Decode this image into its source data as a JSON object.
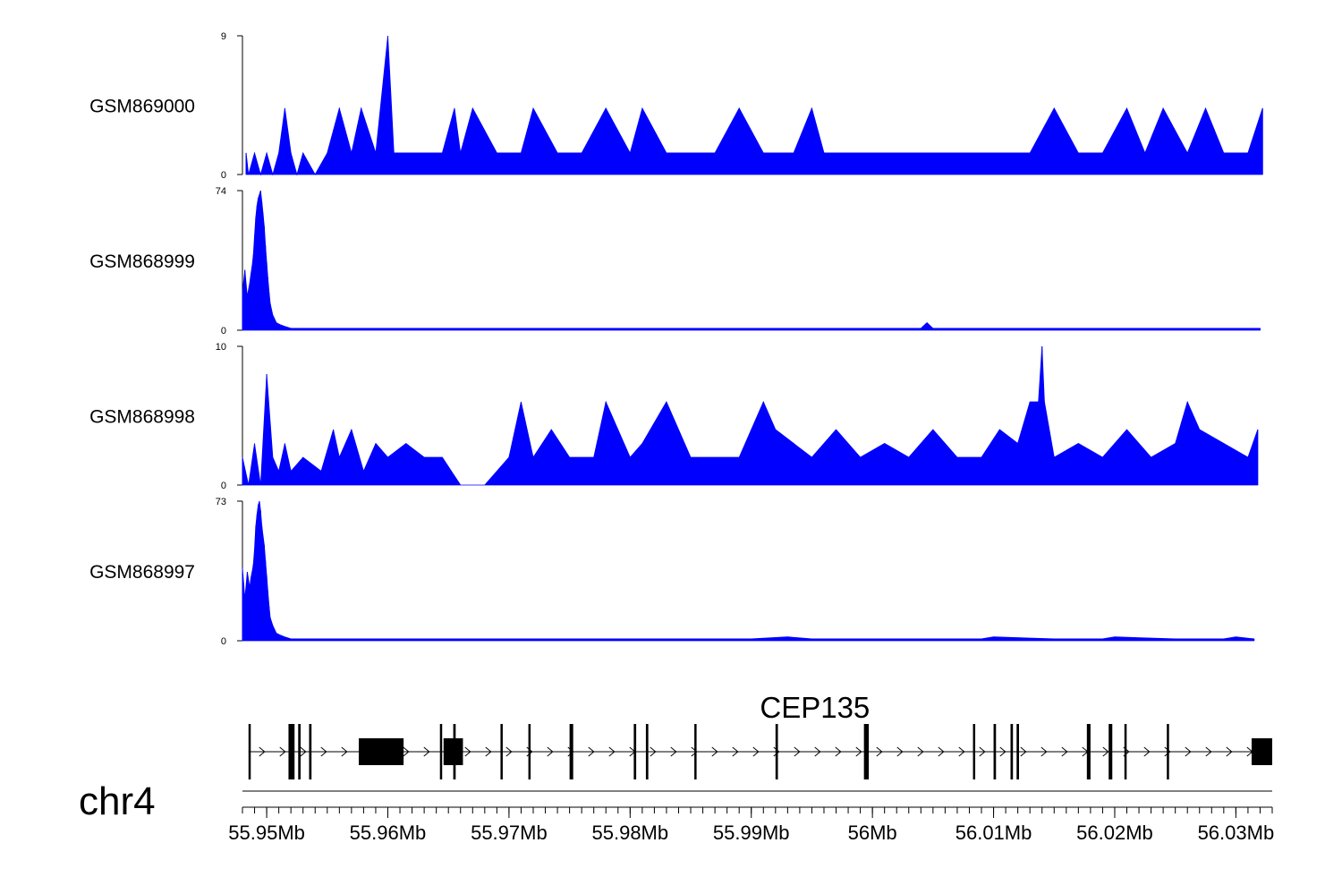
{
  "chart_data": {
    "type": "area",
    "chromosome": "chr4",
    "xlim": [
      55.948,
      56.033
    ],
    "x_unit": "Mb",
    "x_ticks": [
      {
        "value": 55.95,
        "label": "55.95Mb"
      },
      {
        "value": 55.96,
        "label": "55.96Mb"
      },
      {
        "value": 55.97,
        "label": "55.97Mb"
      },
      {
        "value": 55.98,
        "label": "55.98Mb"
      },
      {
        "value": 55.99,
        "label": "55.99Mb"
      },
      {
        "value": 56.0,
        "label": "56Mb"
      },
      {
        "value": 56.01,
        "label": "56.01Mb"
      },
      {
        "value": 56.02,
        "label": "56.02Mb"
      },
      {
        "value": 56.03,
        "label": "56.03Mb"
      }
    ],
    "series": [
      {
        "name": "GSM869000",
        "ylim": [
          0,
          9
        ],
        "y_tick_labels": [
          "0",
          "9"
        ],
        "color": "#0000ff",
        "x": [
          55.9483,
          55.9485,
          55.949,
          55.9495,
          55.95,
          55.9505,
          55.951,
          55.9515,
          55.952,
          55.9525,
          55.953,
          55.954,
          55.955,
          55.956,
          55.957,
          55.9578,
          55.959,
          55.96,
          55.9605,
          55.9613,
          55.963,
          55.9645,
          55.9655,
          55.966,
          55.967,
          55.969,
          55.971,
          55.972,
          55.974,
          55.975,
          55.976,
          55.978,
          55.98,
          55.981,
          55.983,
          55.985,
          55.987,
          55.989,
          55.991,
          55.992,
          55.9935,
          55.995,
          55.996,
          55.998,
          56.001,
          56.003,
          56.005,
          56.007,
          56.01,
          56.0115,
          56.013,
          56.015,
          56.017,
          56.019,
          56.021,
          56.0225,
          56.024,
          56.026,
          56.0275,
          56.029,
          56.031,
          56.0322
        ],
        "y": [
          1.4,
          0,
          1.4,
          0,
          1.4,
          0,
          1.4,
          4.3,
          1.4,
          0,
          1.4,
          0,
          1.4,
          4.3,
          1.4,
          4.3,
          1.4,
          9.0,
          1.4,
          1.4,
          1.4,
          1.4,
          4.3,
          1.4,
          4.3,
          1.4,
          1.4,
          4.3,
          1.4,
          1.4,
          1.4,
          4.3,
          1.4,
          4.3,
          1.4,
          1.4,
          1.4,
          4.3,
          1.4,
          1.4,
          1.4,
          4.3,
          1.4,
          1.4,
          1.4,
          1.4,
          1.4,
          1.4,
          1.4,
          1.4,
          1.4,
          4.3,
          1.4,
          1.4,
          4.3,
          1.4,
          4.3,
          1.4,
          4.3,
          1.4,
          1.4,
          4.3
        ]
      },
      {
        "name": "GSM868999",
        "ylim": [
          0,
          74
        ],
        "y_tick_labels": [
          "0",
          "74"
        ],
        "color": "#0000ff",
        "x": [
          55.948,
          55.9481,
          55.9482,
          55.9484,
          55.9486,
          55.9487,
          55.9488,
          55.9489,
          55.949,
          55.9491,
          55.9492,
          55.9493,
          55.9494,
          55.9495,
          55.9496,
          55.9497,
          55.9498,
          55.9499,
          55.95,
          55.9501,
          55.9502,
          55.9503,
          55.9505,
          55.9508,
          55.9511,
          55.9515,
          55.952,
          55.953,
          55.955,
          55.96,
          55.965,
          55.97,
          55.975,
          55.98,
          55.985,
          55.99,
          55.995,
          56.0,
          56.003,
          56.004,
          56.0045,
          56.005,
          56.01,
          56.014,
          56.02,
          56.025,
          56.03,
          56.032
        ],
        "y": [
          20,
          26,
          32,
          18,
          25,
          30,
          34,
          40,
          50,
          60,
          66,
          70,
          72,
          74,
          68,
          62,
          55,
          45,
          36,
          28,
          20,
          14,
          8,
          4,
          3,
          2,
          1,
          1,
          1,
          1,
          1,
          1,
          1,
          1,
          1,
          1,
          1,
          1,
          1,
          1,
          4,
          1,
          1,
          1,
          1,
          1,
          1,
          1
        ]
      },
      {
        "name": "GSM868998",
        "ylim": [
          0,
          10
        ],
        "y_tick_labels": [
          "0",
          "10"
        ],
        "color": "#0000ff",
        "x": [
          55.948,
          55.9485,
          55.949,
          55.9495,
          55.95,
          55.9505,
          55.951,
          55.9515,
          55.952,
          55.953,
          55.9545,
          55.9555,
          55.956,
          55.957,
          55.958,
          55.959,
          55.96,
          55.9615,
          55.963,
          55.9645,
          55.966,
          55.968,
          55.97,
          55.971,
          55.972,
          55.9735,
          55.975,
          55.977,
          55.978,
          55.98,
          55.981,
          55.983,
          55.985,
          55.987,
          55.989,
          55.991,
          55.992,
          55.9935,
          55.995,
          55.997,
          55.999,
          56.001,
          56.003,
          56.005,
          56.007,
          56.009,
          56.0105,
          56.012,
          56.013,
          56.0137,
          56.014,
          56.0142,
          56.015,
          56.017,
          56.019,
          56.021,
          56.023,
          56.025,
          56.026,
          56.027,
          56.029,
          56.031,
          56.0318
        ],
        "y": [
          2,
          0,
          3,
          0,
          8,
          2,
          1,
          3,
          1,
          2,
          1,
          4,
          2,
          4,
          1,
          3,
          2,
          3,
          2,
          2,
          0,
          0,
          2,
          6,
          2,
          4,
          2,
          2,
          6,
          2,
          3,
          6,
          2,
          2,
          2,
          6,
          4,
          3,
          2,
          4,
          2,
          3,
          2,
          4,
          2,
          2,
          4,
          3,
          6,
          6,
          10,
          6,
          2,
          3,
          2,
          4,
          2,
          3,
          6,
          4,
          3,
          2,
          4
        ]
      },
      {
        "name": "GSM868997",
        "ylim": [
          0,
          73
        ],
        "y_tick_labels": [
          "0",
          "73"
        ],
        "color": "#0000ff",
        "x": [
          55.948,
          55.9481,
          55.9482,
          55.9484,
          55.9486,
          55.9487,
          55.9488,
          55.9489,
          55.949,
          55.9491,
          55.9492,
          55.9493,
          55.9494,
          55.9495,
          55.9496,
          55.9497,
          55.9498,
          55.9499,
          55.95,
          55.9501,
          55.9502,
          55.9503,
          55.9505,
          55.9508,
          55.9511,
          55.9515,
          55.952,
          55.953,
          55.955,
          55.96,
          55.965,
          55.97,
          55.975,
          55.98,
          55.985,
          55.99,
          55.993,
          55.995,
          56.0,
          56.005,
          56.009,
          56.01,
          56.015,
          56.019,
          56.02,
          56.025,
          56.029,
          56.03,
          56.0315
        ],
        "y": [
          38,
          30,
          22,
          36,
          28,
          33,
          36,
          40,
          48,
          60,
          66,
          71,
          73,
          68,
          60,
          55,
          50,
          42,
          34,
          26,
          18,
          12,
          8,
          4,
          3,
          2,
          1,
          1,
          1,
          1,
          1,
          1,
          1,
          1,
          1,
          1,
          2,
          1,
          1,
          1,
          1,
          2,
          1,
          1,
          2,
          1,
          1,
          2,
          1
        ]
      }
    ],
    "gene_track": {
      "gene_name": "CEP135",
      "strand": "+",
      "start": 55.9485,
      "end": 56.033,
      "exons": [
        [
          55.9485,
          55.9486
        ],
        [
          55.9518,
          55.9523
        ],
        [
          55.9526,
          55.9528
        ],
        [
          55.9535,
          55.9537
        ],
        [
          55.9576,
          55.9613
        ],
        [
          55.9643,
          55.9644
        ],
        [
          55.9646,
          55.9662
        ],
        [
          55.9654,
          55.9656
        ],
        [
          55.9693,
          55.9694
        ],
        [
          55.9716,
          55.9717
        ],
        [
          55.975,
          55.9753
        ],
        [
          55.9803,
          55.9805
        ],
        [
          55.9813,
          55.9815
        ],
        [
          55.9853,
          55.9854
        ],
        [
          55.992,
          55.9922
        ],
        [
          55.9993,
          55.9997
        ],
        [
          56.0083,
          56.0084
        ],
        [
          56.01,
          56.0102
        ],
        [
          56.0114,
          56.0116
        ],
        [
          56.0119,
          56.0121
        ],
        [
          56.0177,
          56.018
        ],
        [
          56.0195,
          56.0198
        ],
        [
          56.0208,
          56.0209
        ],
        [
          56.0243,
          56.0244
        ],
        [
          56.0313,
          56.033
        ]
      ]
    }
  }
}
